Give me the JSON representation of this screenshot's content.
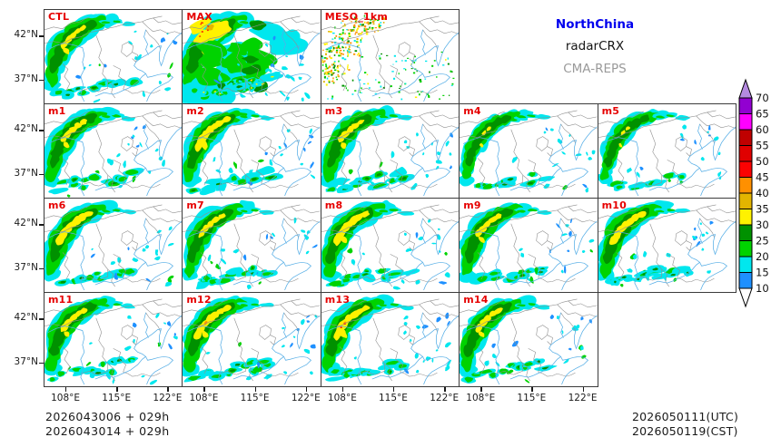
{
  "figure": {
    "header": {
      "region": "NorthChina",
      "product": "radarCRX",
      "model": "CMA-REPS",
      "region_color": "#0000ee",
      "product_color": "#141414",
      "model_color": "#9a9a9a"
    },
    "footer": {
      "left_lines": [
        "2026043006 + 029h",
        "2026043014 + 029h"
      ],
      "right_lines": [
        "2026050111(UTC)",
        "2026050119(CST)"
      ]
    }
  },
  "axes": {
    "x_tick_labels": [
      "108°E",
      "115°E",
      "122°E"
    ],
    "y_tick_labels": [
      "42°N",
      "37°N"
    ]
  },
  "panels": [
    {
      "label": "CTL",
      "row": 0,
      "col": 0,
      "variant": "control",
      "intensity": "moderate",
      "has_yellow": true,
      "has_orange": false,
      "has_red": false
    },
    {
      "label": "MAX",
      "row": 0,
      "col": 1,
      "variant": "max",
      "intensity": "extreme",
      "has_yellow": true,
      "has_orange": true,
      "has_red": true
    },
    {
      "label": "MESO_1km",
      "row": 0,
      "col": 2,
      "variant": "meso",
      "intensity": "strong",
      "has_yellow": true,
      "has_orange": true,
      "has_red": false
    },
    {
      "label": "m1",
      "row": 1,
      "col": 0,
      "variant": "member",
      "intensity": "moderate",
      "has_yellow": true,
      "has_orange": false,
      "has_red": false
    },
    {
      "label": "m2",
      "row": 1,
      "col": 1,
      "variant": "member",
      "intensity": "strong",
      "has_yellow": true,
      "has_orange": false,
      "has_red": false
    },
    {
      "label": "m3",
      "row": 1,
      "col": 2,
      "variant": "member",
      "intensity": "moderate",
      "has_yellow": true,
      "has_orange": false,
      "has_red": false
    },
    {
      "label": "m4",
      "row": 1,
      "col": 3,
      "variant": "member",
      "intensity": "light",
      "has_yellow": true,
      "has_orange": false,
      "has_red": false
    },
    {
      "label": "m5",
      "row": 1,
      "col": 4,
      "variant": "member",
      "intensity": "light",
      "has_yellow": true,
      "has_orange": false,
      "has_red": false
    },
    {
      "label": "m6",
      "row": 2,
      "col": 0,
      "variant": "member",
      "intensity": "strong",
      "has_yellow": true,
      "has_orange": false,
      "has_red": false
    },
    {
      "label": "m7",
      "row": 2,
      "col": 1,
      "variant": "member",
      "intensity": "moderate",
      "has_yellow": true,
      "has_orange": false,
      "has_red": false
    },
    {
      "label": "m8",
      "row": 2,
      "col": 2,
      "variant": "member",
      "intensity": "strong",
      "has_yellow": true,
      "has_orange": false,
      "has_red": false
    },
    {
      "label": "m9",
      "row": 2,
      "col": 3,
      "variant": "member",
      "intensity": "moderate",
      "has_yellow": true,
      "has_orange": false,
      "has_red": false
    },
    {
      "label": "m10",
      "row": 2,
      "col": 4,
      "variant": "member",
      "intensity": "strong",
      "has_yellow": true,
      "has_orange": false,
      "has_red": false
    },
    {
      "label": "m11",
      "row": 3,
      "col": 0,
      "variant": "member",
      "intensity": "moderate",
      "has_yellow": true,
      "has_orange": false,
      "has_red": false
    },
    {
      "label": "m12",
      "row": 3,
      "col": 1,
      "variant": "member",
      "intensity": "strong",
      "has_yellow": true,
      "has_orange": true,
      "has_red": false
    },
    {
      "label": "m13",
      "row": 3,
      "col": 2,
      "variant": "member",
      "intensity": "strong",
      "has_yellow": true,
      "has_orange": true,
      "has_red": true
    },
    {
      "label": "m14",
      "row": 3,
      "col": 3,
      "variant": "member",
      "intensity": "moderate",
      "has_yellow": true,
      "has_orange": false,
      "has_red": false
    }
  ],
  "colorbar": {
    "tick_labels": [
      "10",
      "15",
      "20",
      "25",
      "30",
      "35",
      "40",
      "45",
      "50",
      "55",
      "60",
      "65",
      "70"
    ],
    "segment_colors": [
      "#1e90ff",
      "#00e7ee",
      "#00d300",
      "#009100",
      "#fff200",
      "#e3b500",
      "#ff9000",
      "#fb0202",
      "#e00000",
      "#bf0000",
      "#ff00ff",
      "#9201d1"
    ],
    "over_color": "#b48ae0",
    "under_color": "#ffffff"
  },
  "chart_data": {
    "type": "heatmap",
    "subtype": "ensemble radar reflectivity stamp maps",
    "title": "NorthChina",
    "subtitle": "radarCRX",
    "model": "CMA-REPS",
    "panel_labels": [
      "CTL",
      "MAX",
      "MESO_1km",
      "m1",
      "m2",
      "m3",
      "m4",
      "m5",
      "m6",
      "m7",
      "m8",
      "m9",
      "m10",
      "m11",
      "m12",
      "m13",
      "m14"
    ],
    "grid_rows": [
      [
        "CTL",
        "MAX",
        "MESO_1km"
      ],
      [
        "m1",
        "m2",
        "m3",
        "m4",
        "m5"
      ],
      [
        "m6",
        "m7",
        "m8",
        "m9",
        "m10"
      ],
      [
        "m11",
        "m12",
        "m13",
        "m14"
      ]
    ],
    "x_axis": {
      "label": "longitude",
      "ticks": [
        "108°E",
        "115°E",
        "122°E"
      ],
      "repeated_per_bottom_panel": true
    },
    "y_axis": {
      "label": "latitude",
      "ticks": [
        "42°N",
        "37°N"
      ],
      "repeated_per_row": true
    },
    "colorbar": {
      "levels": [
        10,
        15,
        20,
        25,
        30,
        35,
        40,
        45,
        50,
        55,
        60,
        65,
        70
      ],
      "colors_low_to_high": [
        "#1e90ff",
        "#00e7ee",
        "#00d300",
        "#009100",
        "#fff200",
        "#e3b500",
        "#ff9000",
        "#fb0202",
        "#e00000",
        "#bf0000",
        "#ff00ff",
        "#9201d1"
      ],
      "over_arrow_color": "#b48ae0",
      "under_arrow_color": "#ffffff",
      "legend_position": "right"
    },
    "footer_left": [
      "2026043006 + 029h",
      "2026043014 + 029h"
    ],
    "footer_right": [
      "2026050111(UTC)",
      "2026050119(CST)"
    ]
  }
}
